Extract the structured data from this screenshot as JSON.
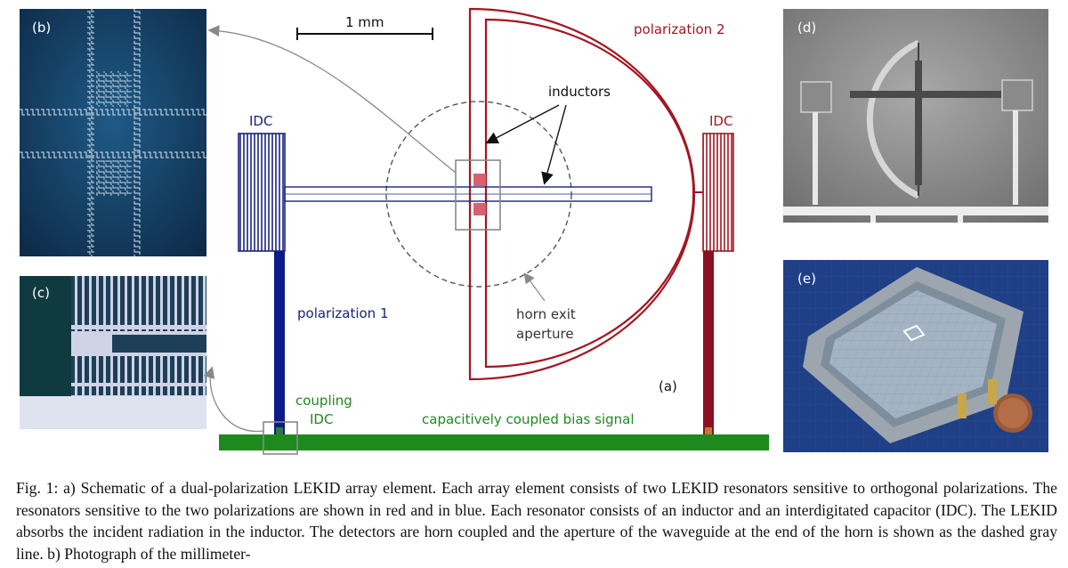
{
  "figure": {
    "panel_b": {
      "letter": "(b)"
    },
    "panel_c": {
      "letter": "(c)"
    },
    "panel_d": {
      "letter": "(d)"
    },
    "panel_e": {
      "letter": "(e)"
    },
    "schematic": {
      "scale_bar_label": "1 mm",
      "polarization_2_label": "polarization 2",
      "polarization_1_label": "polarization 1",
      "idc_left_label": "IDC",
      "idc_right_label": "IDC",
      "inductors_label": "inductors",
      "horn_label_line1": "horn exit",
      "horn_label_line2": "aperture",
      "coupling_label_line1": "coupling",
      "coupling_label_line2": "IDC",
      "bias_label": "capacitively coupled bias signal",
      "panel_letter": "(a)",
      "colors": {
        "polarization_1": "#1a237e",
        "polarization_2": "#a31621",
        "bias_line": "#1e8a1e",
        "aperture": "#555555"
      }
    }
  },
  "caption": {
    "text": "Fig. 1: a) Schematic of a dual-polarization LEKID array element. Each array element consists of two LEKID resonators sensitive to orthogonal polarizations. The resonators sensitive to the two polarizations are shown in red and in blue. Each resonator consists of an inductor and an interdigitated capacitor (IDC). The LEKID absorbs the incident radiation in the inductor. The detectors are horn coupled and the aperture of the waveguide at the end of the horn is shown as the dashed gray line. b) Photograph of the millimeter-"
  }
}
